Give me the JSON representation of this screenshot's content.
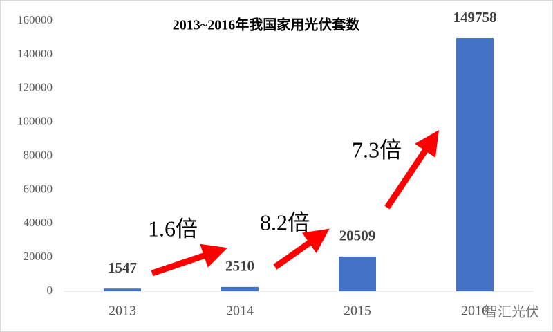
{
  "chart_data": {
    "type": "bar",
    "title": "2013~2016年我国家用光伏套数",
    "categories": [
      "2013",
      "2014",
      "2015",
      "2016"
    ],
    "values": [
      1547,
      2510,
      20509,
      149758
    ],
    "color": "#4472c4",
    "ylim": [
      0,
      160000
    ],
    "yticks": [
      0,
      20000,
      40000,
      60000,
      80000,
      100000,
      120000,
      140000,
      160000
    ],
    "annotations": [
      "1.6倍",
      "8.2倍",
      "7.3倍"
    ],
    "arrow_color": "#ff0000",
    "watermark": "智汇光伏"
  }
}
